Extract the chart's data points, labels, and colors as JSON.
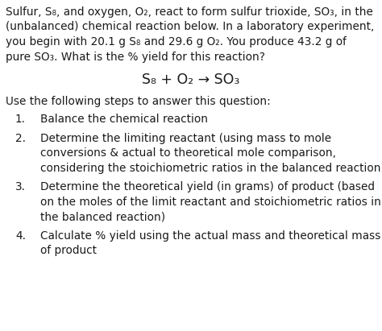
{
  "background_color": "#ffffff",
  "text_color": "#1a1a1a",
  "figsize": [
    4.74,
    4.11
  ],
  "dpi": 100,
  "para_lines": [
    "Sulfur, S₈, and oxygen, O₂, react to form sulfur trioxide, SO₃, in the",
    "(unbalanced) chemical reaction below. In a laboratory experiment,",
    "you begin with 20.1 g S₈ and 29.6 g O₂. You produce 43.2 g of",
    "pure SO₃. What is the % yield for this reaction?"
  ],
  "equation": "S₈ + O₂ → SO₃",
  "steps_intro": "Use the following steps to answer this question:",
  "steps": [
    [
      "Balance the chemical reaction"
    ],
    [
      "Determine the limiting reactant (using mass to mole",
      "conversions & actual to theoretical mole comparison,",
      "considering the stoichiometric ratios in the balanced reaction)"
    ],
    [
      "Determine the theoretical yield (in grams) of product (based",
      "on the moles of the limit reactant and stoichiometric ratios in",
      "the balanced reaction)"
    ],
    [
      "Calculate % yield using the actual mass and theoretical mass",
      "of product"
    ]
  ],
  "font_size_body": 9.8,
  "font_size_equation": 12.5,
  "font_family": "DejaVu Sans"
}
